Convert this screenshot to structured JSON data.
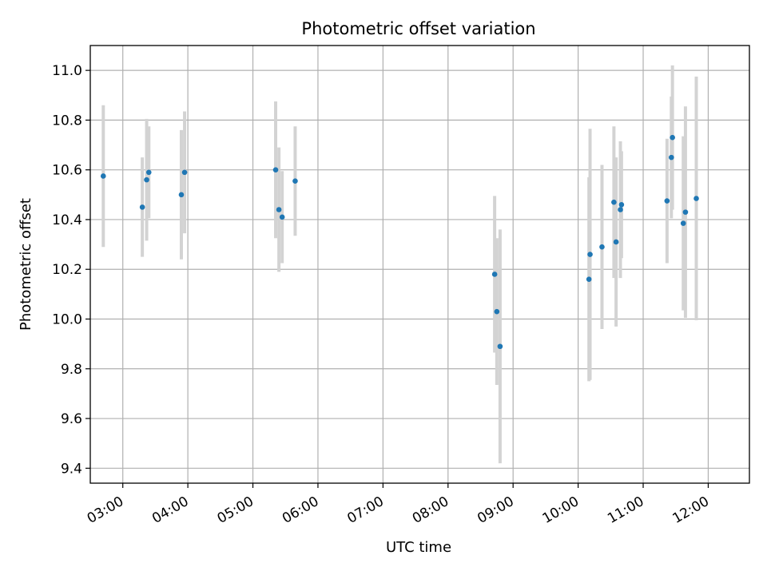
{
  "chart_data": {
    "type": "scatter",
    "title": "Photometric offset variation",
    "xlabel": "UTC time",
    "ylabel": "Photometric offset",
    "xlim": [
      "02:30",
      "12:38"
    ],
    "ylim": [
      9.34,
      11.1
    ],
    "x_ticks": [
      "03:00",
      "04:00",
      "05:00",
      "06:00",
      "07:00",
      "08:00",
      "09:00",
      "10:00",
      "11:00",
      "12:00"
    ],
    "y_ticks": [
      "9.4",
      "9.6",
      "9.8",
      "10.0",
      "10.2",
      "10.4",
      "10.6",
      "10.8",
      "11.0"
    ],
    "grid": true,
    "marker_color": "#1f77b4",
    "errorbar_color": "#d3d3d3",
    "points": [
      {
        "time": "02:42",
        "y": 10.575,
        "err": 0.285
      },
      {
        "time": "03:18",
        "y": 10.45,
        "err": 0.2
      },
      {
        "time": "03:22",
        "y": 10.56,
        "err": 0.245
      },
      {
        "time": "03:24",
        "y": 10.59,
        "err": 0.185
      },
      {
        "time": "03:54",
        "y": 10.5,
        "err": 0.26
      },
      {
        "time": "03:57",
        "y": 10.59,
        "err": 0.245
      },
      {
        "time": "05:21",
        "y": 10.6,
        "err": 0.275
      },
      {
        "time": "05:24",
        "y": 10.44,
        "err": 0.25
      },
      {
        "time": "05:27",
        "y": 10.41,
        "err": 0.185
      },
      {
        "time": "05:39",
        "y": 10.555,
        "err": 0.22
      },
      {
        "time": "08:43",
        "y": 10.18,
        "err": 0.315
      },
      {
        "time": "08:45",
        "y": 10.03,
        "err": 0.295
      },
      {
        "time": "08:48",
        "y": 9.89,
        "err": 0.47
      },
      {
        "time": "10:10",
        "y": 10.16,
        "err": 0.41
      },
      {
        "time": "10:11",
        "y": 10.26,
        "err": 0.505
      },
      {
        "time": "10:22",
        "y": 10.29,
        "err": 0.33
      },
      {
        "time": "10:33",
        "y": 10.47,
        "err": 0.305
      },
      {
        "time": "10:35",
        "y": 10.31,
        "err": 0.34
      },
      {
        "time": "10:39",
        "y": 10.44,
        "err": 0.275
      },
      {
        "time": "10:40",
        "y": 10.46,
        "err": 0.215
      },
      {
        "time": "11:22",
        "y": 10.475,
        "err": 0.25
      },
      {
        "time": "11:26",
        "y": 10.65,
        "err": 0.245
      },
      {
        "time": "11:27",
        "y": 10.73,
        "err": 0.29
      },
      {
        "time": "11:37",
        "y": 10.385,
        "err": 0.35
      },
      {
        "time": "11:39",
        "y": 10.43,
        "err": 0.425
      },
      {
        "time": "11:49",
        "y": 10.485,
        "err": 0.49
      }
    ]
  }
}
